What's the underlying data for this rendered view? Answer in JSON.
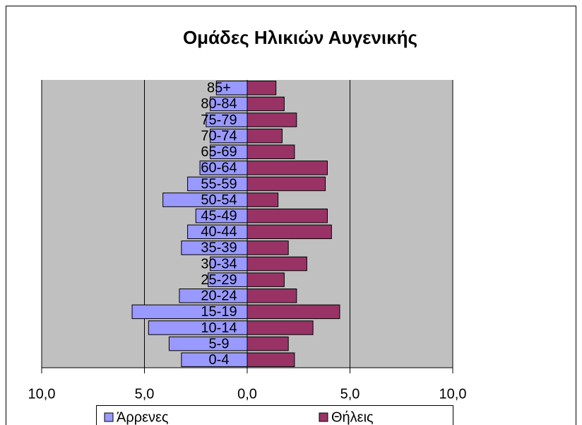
{
  "chart_data": {
    "type": "pyramid",
    "title": "Ομάδες Ηλικιών Αυγενικής",
    "categories": [
      "0-4",
      "5-9",
      "10-14",
      "15-19",
      "20-24",
      "25-29",
      "30-34",
      "35-39",
      "40-44",
      "45-49",
      "50-54",
      "55-59",
      "60-64",
      "65-69",
      "70-74",
      "75-79",
      "80-84",
      "85+"
    ],
    "series": [
      {
        "name": "Άρρενες",
        "color": "#9999ff",
        "values": [
          -3.2,
          -3.8,
          -4.8,
          -5.6,
          -3.3,
          -1.9,
          -1.8,
          -3.2,
          -2.9,
          -2.5,
          -4.1,
          -2.9,
          -2.3,
          -1.8,
          -1.8,
          -2.0,
          -1.8,
          -1.5
        ]
      },
      {
        "name": "Θήλεις",
        "color": "#993366",
        "values": [
          2.3,
          2.0,
          3.2,
          4.5,
          2.4,
          1.8,
          2.9,
          2.0,
          4.1,
          3.9,
          1.5,
          3.8,
          3.9,
          2.3,
          1.7,
          2.4,
          1.8,
          1.4
        ]
      }
    ],
    "xlim": [
      -10,
      10
    ],
    "xticks": [
      {
        "value": -10,
        "label": "10,0"
      },
      {
        "value": -5,
        "label": "5,0"
      },
      {
        "value": 0,
        "label": "0,0"
      },
      {
        "value": 5,
        "label": "5,0"
      },
      {
        "value": 10,
        "label": "10,0"
      }
    ],
    "grid": true,
    "legend": "bottom"
  }
}
